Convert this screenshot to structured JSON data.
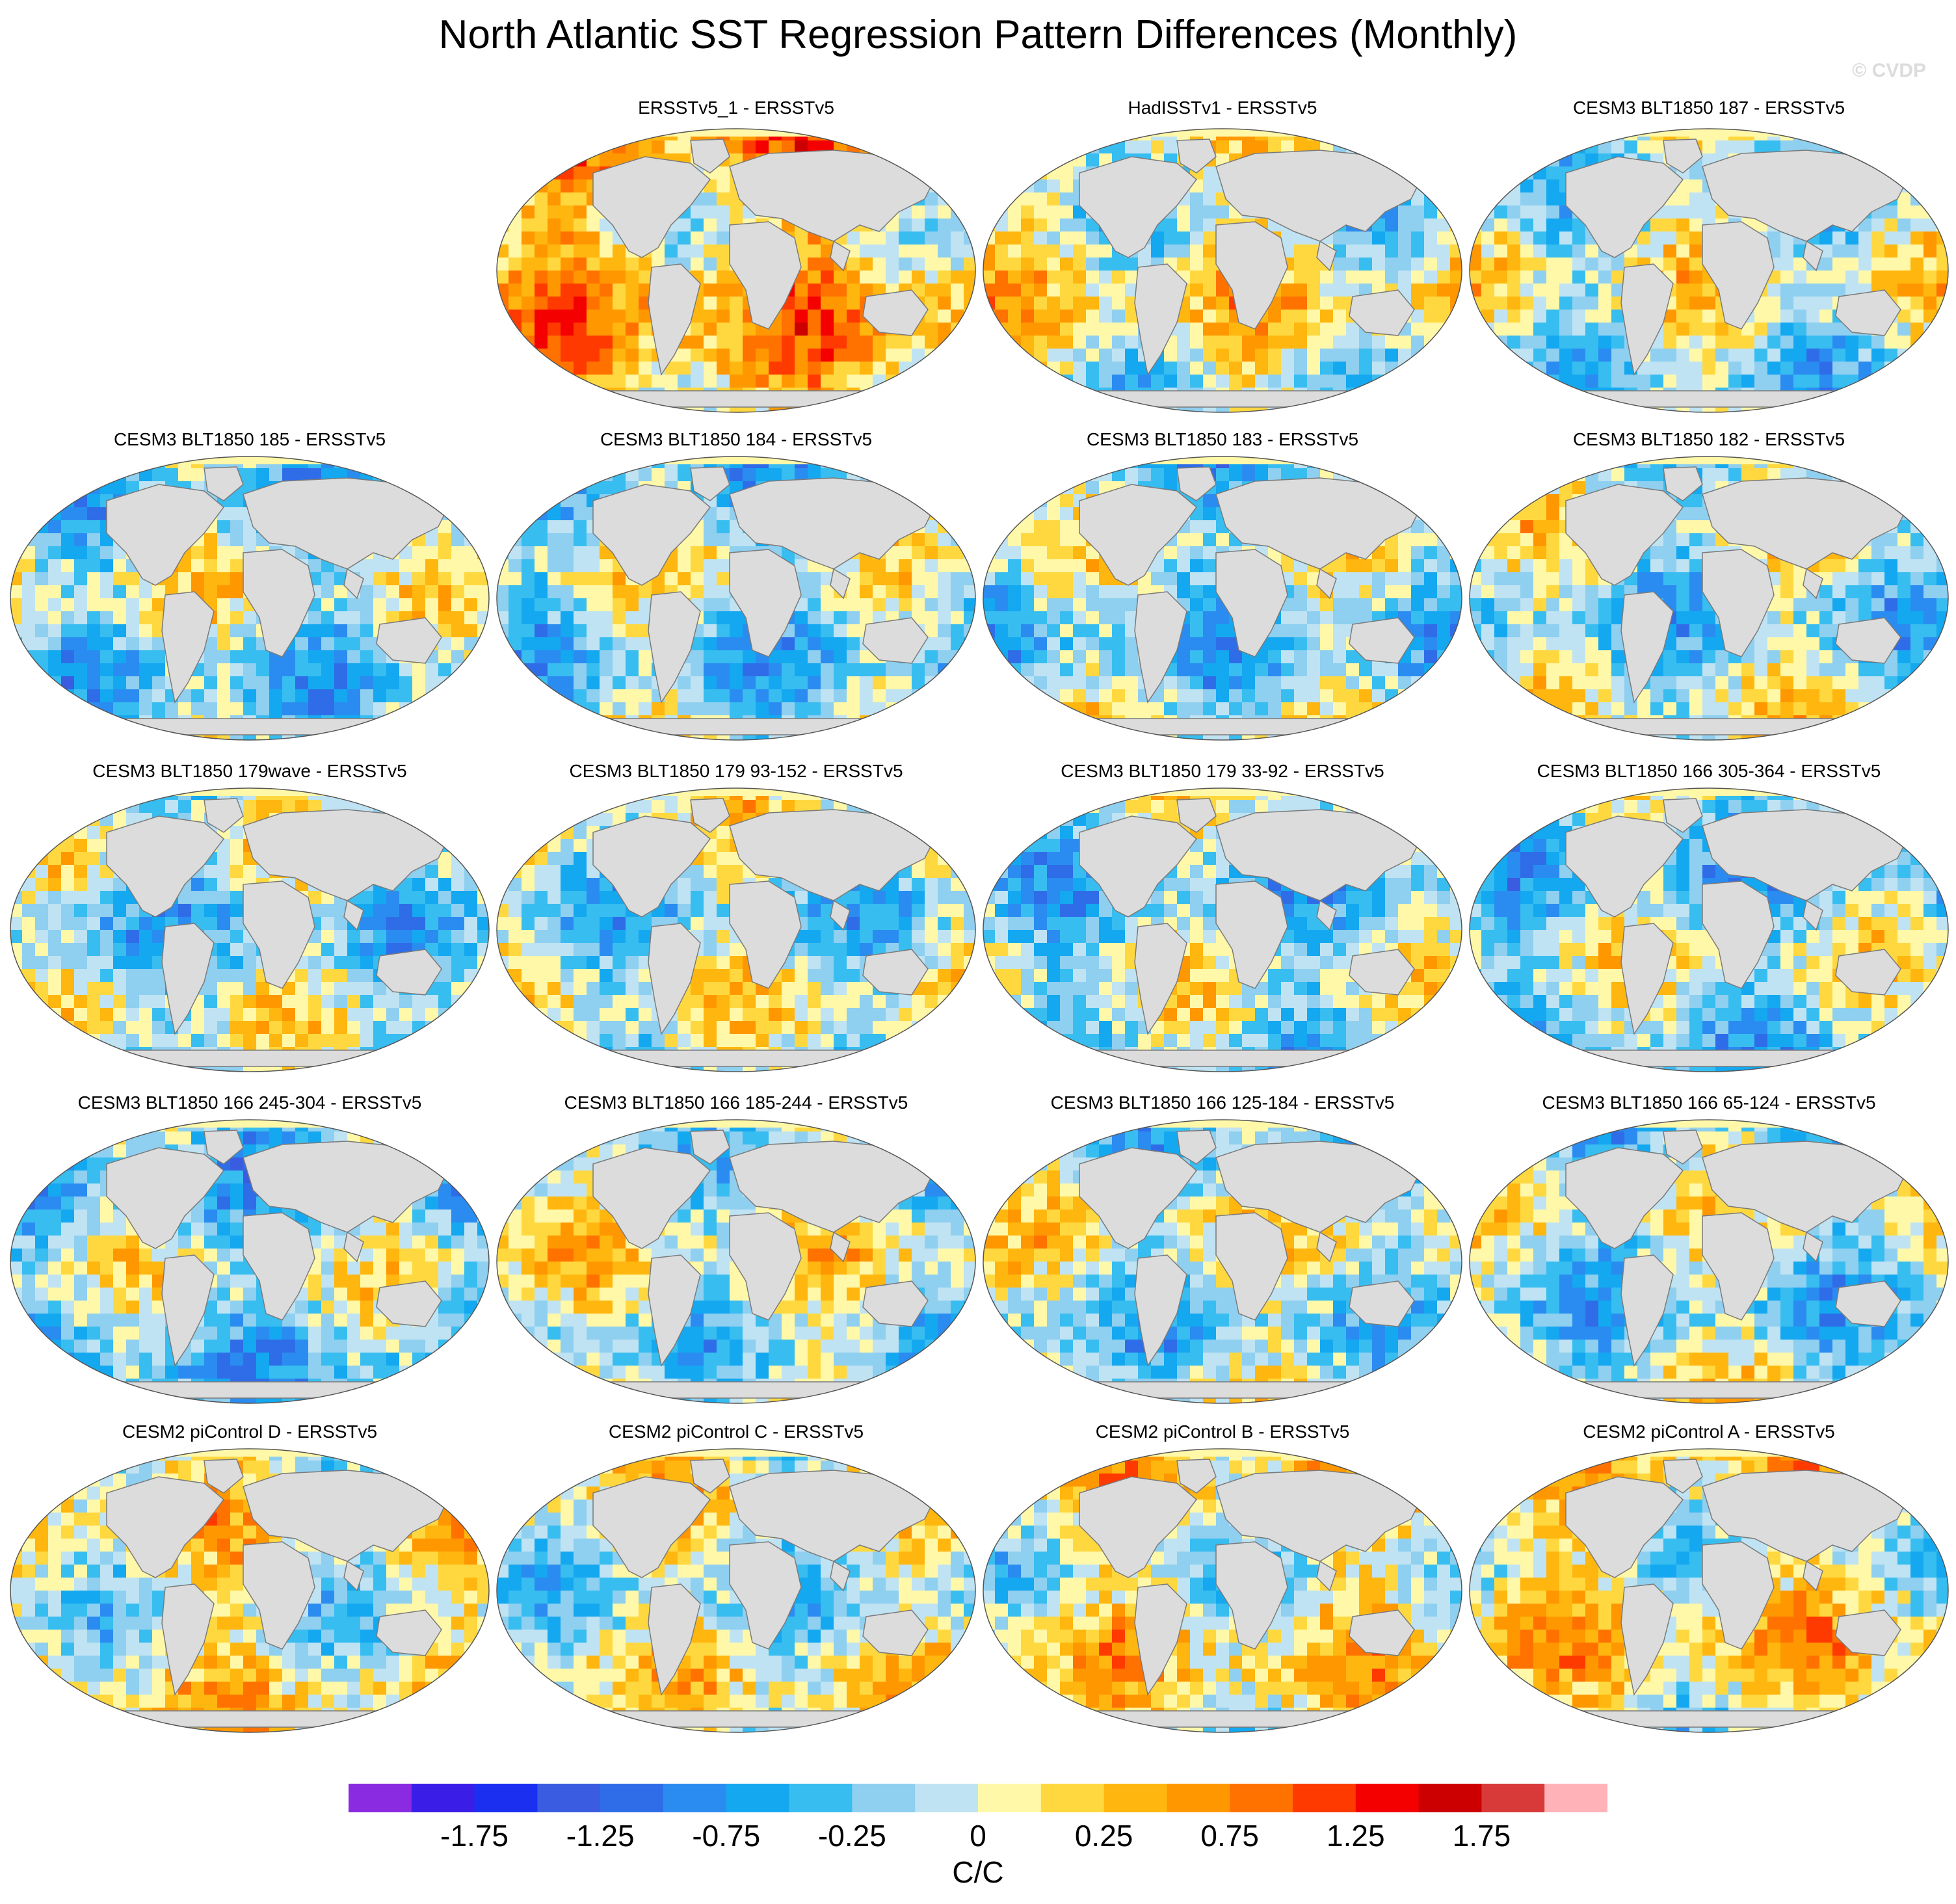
{
  "title": "North Atlantic SST Regression Pattern Differences (Monthly)",
  "watermark": "© CVDP",
  "panels": [
    {
      "label": "ERSSTv5_1 - ERSSTv5",
      "tone": 0.55
    },
    {
      "label": "HadISSTv1 - ERSSTv5",
      "tone": 0.05
    },
    {
      "label": "CESM3 BLT1850 187 - ERSSTv5",
      "tone": -0.1
    },
    {
      "label": "CESM3 BLT1850 185 - ERSSTv5",
      "tone": -0.25
    },
    {
      "label": "CESM3 BLT1850 184 - ERSSTv5",
      "tone": -0.25
    },
    {
      "label": "CESM3 BLT1850 183 - ERSSTv5",
      "tone": -0.3
    },
    {
      "label": "CESM3 BLT1850 182 - ERSSTv5",
      "tone": -0.2
    },
    {
      "label": "CESM3 BLT1850 179wave - ERSSTv5",
      "tone": -0.25
    },
    {
      "label": "CESM3 BLT1850 179 93-152 - ERSSTv5",
      "tone": -0.15
    },
    {
      "label": "CESM3 BLT1850 179 33-92 - ERSSTv5",
      "tone": -0.3
    },
    {
      "label": "CESM3 BLT1850 166 305-364 - ERSSTv5",
      "tone": -0.3
    },
    {
      "label": "CESM3 BLT1850 166 245-304 - ERSSTv5",
      "tone": -0.35
    },
    {
      "label": "CESM3 BLT1850 166 185-244 - ERSSTv5",
      "tone": -0.05
    },
    {
      "label": "CESM3 BLT1850 166 125-184 - ERSSTv5",
      "tone": -0.15
    },
    {
      "label": "CESM3 BLT1850 166 65-124 - ERSSTv5",
      "tone": -0.2
    },
    {
      "label": "CESM2 piControl D - ERSSTv5",
      "tone": 0.1
    },
    {
      "label": "CESM2 piControl C - ERSSTv5",
      "tone": 0.0
    },
    {
      "label": "CESM2 piControl B - ERSSTv5",
      "tone": 0.15
    },
    {
      "label": "CESM2 piControl A - ERSSTv5",
      "tone": 0.2
    }
  ],
  "colorbar": {
    "colors": [
      "#8a2be2",
      "#3a1ee8",
      "#1a2ff0",
      "#3a5ce0",
      "#2f6de8",
      "#2a8cf0",
      "#14a8f0",
      "#38bdf0",
      "#8fcff0",
      "#bfe3f2",
      "#fff8a8",
      "#ffd840",
      "#ffb60e",
      "#ff9800",
      "#ff7200",
      "#ff3a00",
      "#f50000",
      "#cc0000",
      "#d83a3a",
      "#ffb3b8"
    ],
    "tick_labels": [
      "-1.75",
      "-1.25",
      "-0.75",
      "-0.25",
      "0",
      "0.25",
      "0.75",
      "1.25",
      "1.75"
    ],
    "units": "C/C"
  }
}
